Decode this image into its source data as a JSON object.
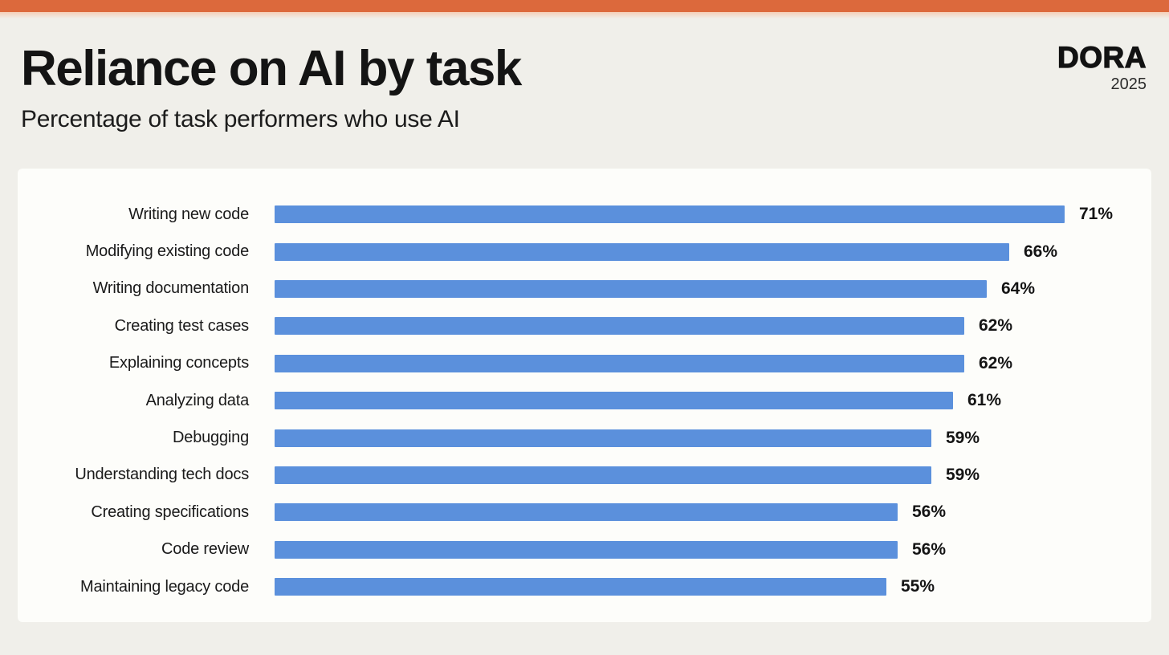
{
  "page": {
    "background_color": "#f0efea",
    "panel_color": "#fdfdfa",
    "accent_bar_color": "#dc693c"
  },
  "header": {
    "title": "Reliance on AI by task",
    "subtitle": "Percentage of task performers who use AI",
    "logo": "DORA",
    "year": "2025"
  },
  "chart_data": {
    "type": "bar",
    "orientation": "horizontal",
    "title": "Reliance on AI by task",
    "subtitle": "Percentage of task performers who use AI",
    "xlabel": "",
    "ylabel": "",
    "grid": false,
    "axis_shown": false,
    "value_labels_position": "end-of-bar",
    "value_suffix": "%",
    "bar_color": "#5b90dc",
    "xmin": 0,
    "categories": [
      "Writing new code",
      "Modifying existing code",
      "Writing documentation",
      "Creating test cases",
      "Explaining concepts",
      "Analyzing data",
      "Debugging",
      "Understanding tech docs",
      "Creating specifications",
      "Code review",
      "Maintaining legacy code"
    ],
    "values": [
      71,
      66,
      64,
      62,
      62,
      61,
      59,
      59,
      56,
      56,
      55
    ]
  }
}
